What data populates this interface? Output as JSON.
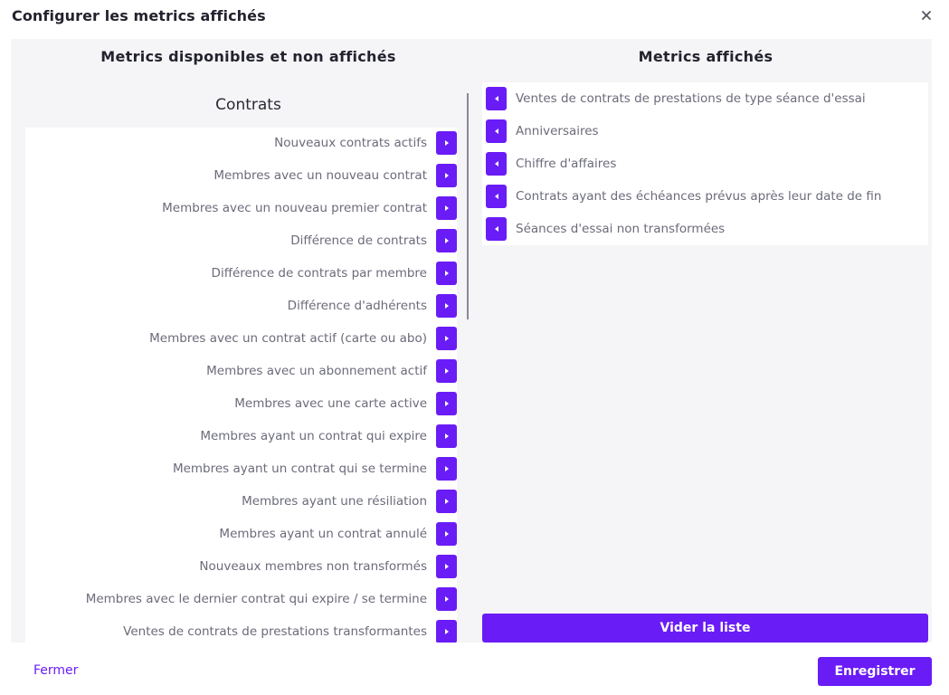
{
  "modal": {
    "title": "Configurer les metrics affichés"
  },
  "available": {
    "title": "Metrics disponibles et non affichés",
    "group": "Contrats",
    "items": [
      {
        "label": "Nouveaux contrats actifs"
      },
      {
        "label": "Membres avec un nouveau contrat"
      },
      {
        "label": "Membres avec un nouveau premier contrat"
      },
      {
        "label": "Différence de contrats"
      },
      {
        "label": "Différence de contrats par membre"
      },
      {
        "label": "Différence d'adhérents"
      },
      {
        "label": "Membres avec un contrat actif (carte ou abo)"
      },
      {
        "label": "Membres avec un abonnement actif"
      },
      {
        "label": "Membres avec une carte active"
      },
      {
        "label": "Membres ayant un contrat qui expire"
      },
      {
        "label": "Membres ayant un contrat qui se termine"
      },
      {
        "label": "Membres ayant une résiliation"
      },
      {
        "label": "Membres ayant un contrat annulé"
      },
      {
        "label": "Nouveaux membres non transformés"
      },
      {
        "label": "Membres avec le dernier contrat qui expire / se termine"
      },
      {
        "label": "Ventes de contrats de prestations transformantes"
      }
    ]
  },
  "shown": {
    "title": "Metrics affichés",
    "items": [
      {
        "label": "Ventes de contrats de prestations de type séance d'essai"
      },
      {
        "label": "Anniversaires"
      },
      {
        "label": "Chiffre d'affaires"
      },
      {
        "label": "Contrats ayant des échéances prévus après leur date de fin"
      },
      {
        "label": "Séances d'essai non transformées"
      }
    ],
    "clear_label": "Vider la liste"
  },
  "footer": {
    "close_label": "Fermer",
    "save_label": "Enregistrer"
  },
  "colors": {
    "accent": "#6a1cf6",
    "panel_bg": "#f5f5f8",
    "item_text": "#6b6b7b"
  },
  "icons": {
    "close": "close-icon",
    "move_right": "chevron-right-icon",
    "move_left": "chevron-left-icon"
  }
}
